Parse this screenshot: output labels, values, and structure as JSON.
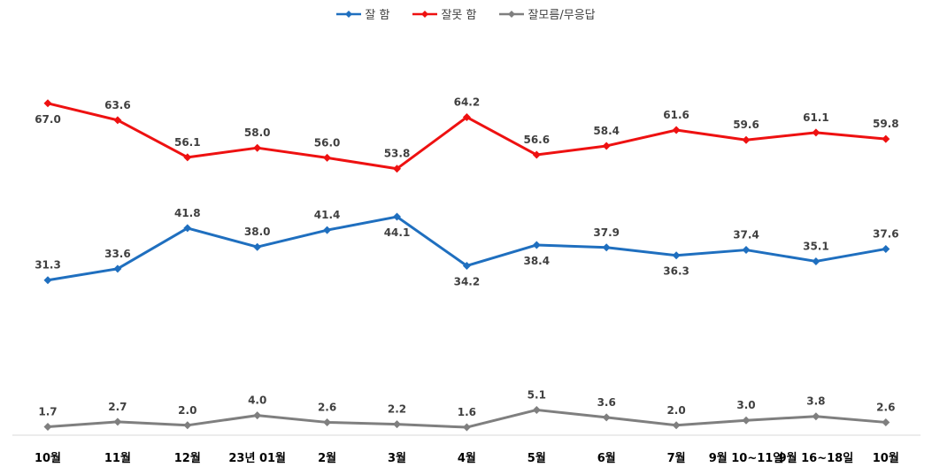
{
  "chart_data": {
    "type": "line",
    "title": "",
    "xlabel": "",
    "ylabel": "",
    "categories": [
      "10월",
      "11월",
      "12월",
      "23년 01월",
      "2월",
      "3월",
      "4월",
      "5월",
      "6월",
      "7월",
      "9월 10~11일",
      "9월 16~18일",
      "10월"
    ],
    "ylim": [
      0,
      75
    ],
    "grid": false,
    "legend_position": "top-center",
    "series": [
      {
        "name": "잘 함",
        "color": "#1f6fbf",
        "values": [
          31.3,
          33.6,
          41.8,
          38.0,
          41.4,
          44.1,
          34.2,
          38.4,
          37.9,
          36.3,
          37.4,
          35.1,
          37.6
        ],
        "label_pos": [
          "above",
          "above",
          "above",
          "above",
          "above",
          "below",
          "below",
          "below",
          "above",
          "below",
          "above",
          "above",
          "above"
        ]
      },
      {
        "name": "잘못 함",
        "color": "#ee1111",
        "values": [
          67.0,
          63.6,
          56.1,
          58.0,
          56.0,
          53.8,
          64.2,
          56.6,
          58.4,
          61.6,
          59.6,
          61.1,
          59.8
        ],
        "label_pos": [
          "below",
          "above",
          "above",
          "above",
          "above",
          "above",
          "above",
          "above",
          "above",
          "above",
          "above",
          "above",
          "above"
        ]
      },
      {
        "name": "잘모름/무응답",
        "color": "#7f7f7f",
        "values": [
          1.7,
          2.7,
          2.0,
          4.0,
          2.6,
          2.2,
          1.6,
          5.1,
          3.6,
          2.0,
          3.0,
          3.8,
          2.6
        ],
        "label_pos": [
          "above",
          "above",
          "above",
          "above",
          "above",
          "above",
          "above",
          "above",
          "above",
          "above",
          "above",
          "above",
          "above"
        ]
      }
    ]
  }
}
